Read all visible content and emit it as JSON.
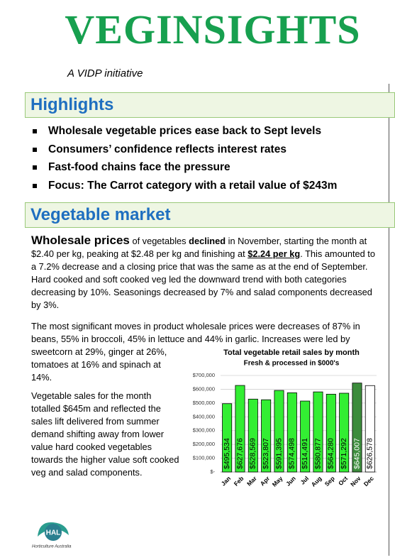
{
  "header": {
    "title": "VEGINSIGHTS",
    "subtitle": "A VIDP initiative"
  },
  "highlights": {
    "heading": "Highlights",
    "items": [
      "Wholesale vegetable prices ease back to Sept levels",
      "Consumers’ confidence reflects interest rates",
      "Fast-food chains face the pressure",
      "Focus: The Carrot category with a retail value of $243m"
    ]
  },
  "market": {
    "heading": "Vegetable market",
    "paragraph1": [
      "Wholesale prices",
      " of vegetables ",
      "declined",
      " in November, starting the month at $2.40 per kg, peaking at $2.48 per kg and finishing at ",
      "$2.24 per kg",
      ". This amounted to a 7.2% decrease and a closing price that was the same as at the end of September. Hard cooked and soft cooked veg led the downward trend with both categories decreasing by 10%. Seasonings decreased by 7% and salad components decreased by 3%."
    ],
    "paragraph2": "The most significant moves in product wholesale prices were decreases of 87% in beans, 55% in broccoli, 45% in lettuce and 44% in garlic. Increases were led by sweetcorn at 29%, ginger at 26%, tomatoes at 16% and spinach at 14%.",
    "paragraph3": "Vegetable sales for the month totalled $645m and reflected the sales lift delivered from summer demand shifting away from lower value hard cooked vegetables towards the higher value soft cooked veg and salad components."
  },
  "chart_data": {
    "type": "bar",
    "title": "Total vegetable retail sales by month",
    "subtitle": "Fresh & processed in $000's",
    "categories": [
      "Jan",
      "Feb",
      "Mar",
      "Apr",
      "May",
      "Jun",
      "Jul",
      "Aug",
      "Sep",
      "Oct",
      "Nov",
      "Dec"
    ],
    "values": [
      495534,
      627676,
      528569,
      523807,
      591395,
      574498,
      514491,
      580877,
      564280,
      571292,
      645007,
      626578
    ],
    "value_labels": [
      "$495,534",
      "$627,676",
      "$528,569",
      "$523,807",
      "$591,395",
      "$574,498",
      "$514,491",
      "$580,877",
      "$564,280",
      "$571,292",
      "$645,007",
      "$626,578"
    ],
    "colors": [
      "#33ee33",
      "#33ee33",
      "#33ee33",
      "#33ee33",
      "#33ee33",
      "#33ee33",
      "#33ee33",
      "#33ee33",
      "#33ee33",
      "#33ee33",
      "#3c8c3c",
      "#ffffff"
    ],
    "value_label_colors": [
      "#000000",
      "#000000",
      "#000000",
      "#000000",
      "#000000",
      "#000000",
      "#000000",
      "#000000",
      "#000000",
      "#000000",
      "#ffffff",
      "#000000"
    ],
    "ylim": [
      0,
      700000
    ],
    "yticks": [
      {
        "value": 0,
        "label": "$-"
      },
      {
        "value": 100000,
        "label": "$100,000"
      },
      {
        "value": 200000,
        "label": "$200,000"
      },
      {
        "value": 300000,
        "label": "$300,000"
      },
      {
        "value": 400000,
        "label": "$400,000"
      },
      {
        "value": 500000,
        "label": "$500,000"
      },
      {
        "value": 600000,
        "label": "$600,000"
      },
      {
        "value": 700000,
        "label": "$700,000"
      }
    ],
    "grid": true
  },
  "footer": {
    "logo": "HAL",
    "org": "Horticulture Australia"
  }
}
